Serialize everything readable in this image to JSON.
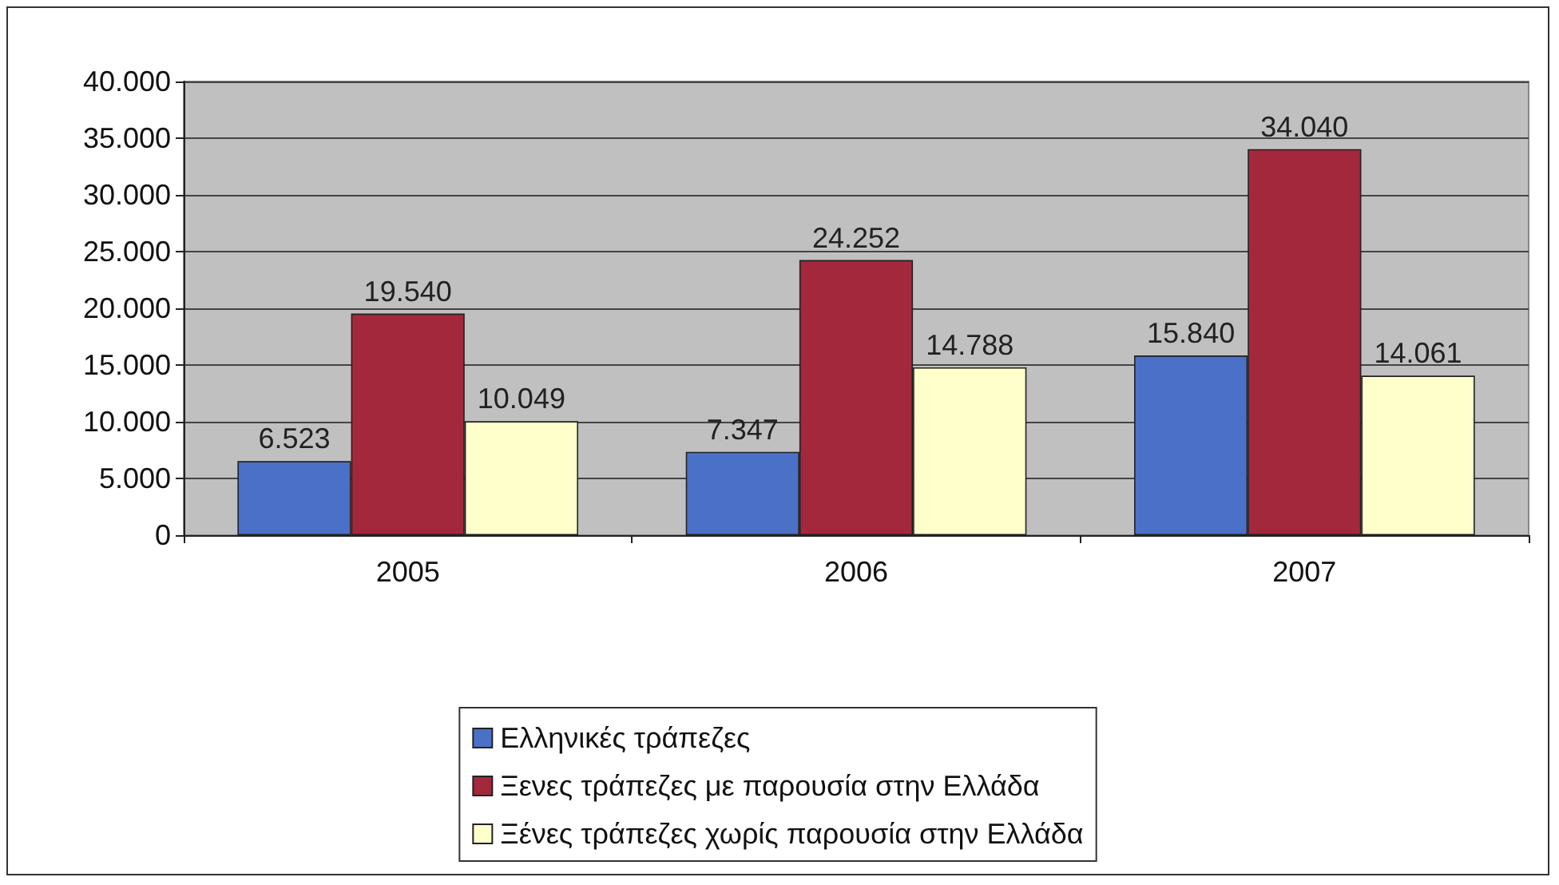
{
  "chart_data": {
    "type": "bar",
    "categories": [
      "2005",
      "2006",
      "2007"
    ],
    "series": [
      {
        "name": "Ελληνικές τράπεζες",
        "color": "#4a70c8",
        "values": [
          6523,
          7347,
          15840
        ],
        "value_labels": [
          "6.523",
          "7.347",
          "15.840"
        ]
      },
      {
        "name": "Ξενες τράπεζες με παρουσία στην Ελλάδα",
        "color": "#a3283c",
        "values": [
          19540,
          24252,
          34040
        ],
        "value_labels": [
          "19.540",
          "24.252",
          "34.040"
        ]
      },
      {
        "name": "Ξένες τράπεζες χωρίς παρουσία στην Ελλάδα",
        "color": "#ffffcc",
        "values": [
          10049,
          14788,
          14061
        ],
        "value_labels": [
          "10.049",
          "14.788",
          "14.061"
        ]
      }
    ],
    "ylim": [
      0,
      40000
    ],
    "yticks": [
      0,
      {
        "value": 5000,
        "label": "5.000"
      },
      {
        "value": 10000,
        "label": "10.000"
      },
      {
        "value": 15000,
        "label": "15.000"
      },
      {
        "value": 20000,
        "label": "20.000"
      },
      {
        "value": 25000,
        "label": "25.000"
      },
      {
        "value": 30000,
        "label": "30.000"
      },
      {
        "value": 35000,
        "label": "35.000"
      },
      {
        "value": 40000,
        "label": "40.000"
      }
    ],
    "grid": "y",
    "legend": "bottom"
  }
}
